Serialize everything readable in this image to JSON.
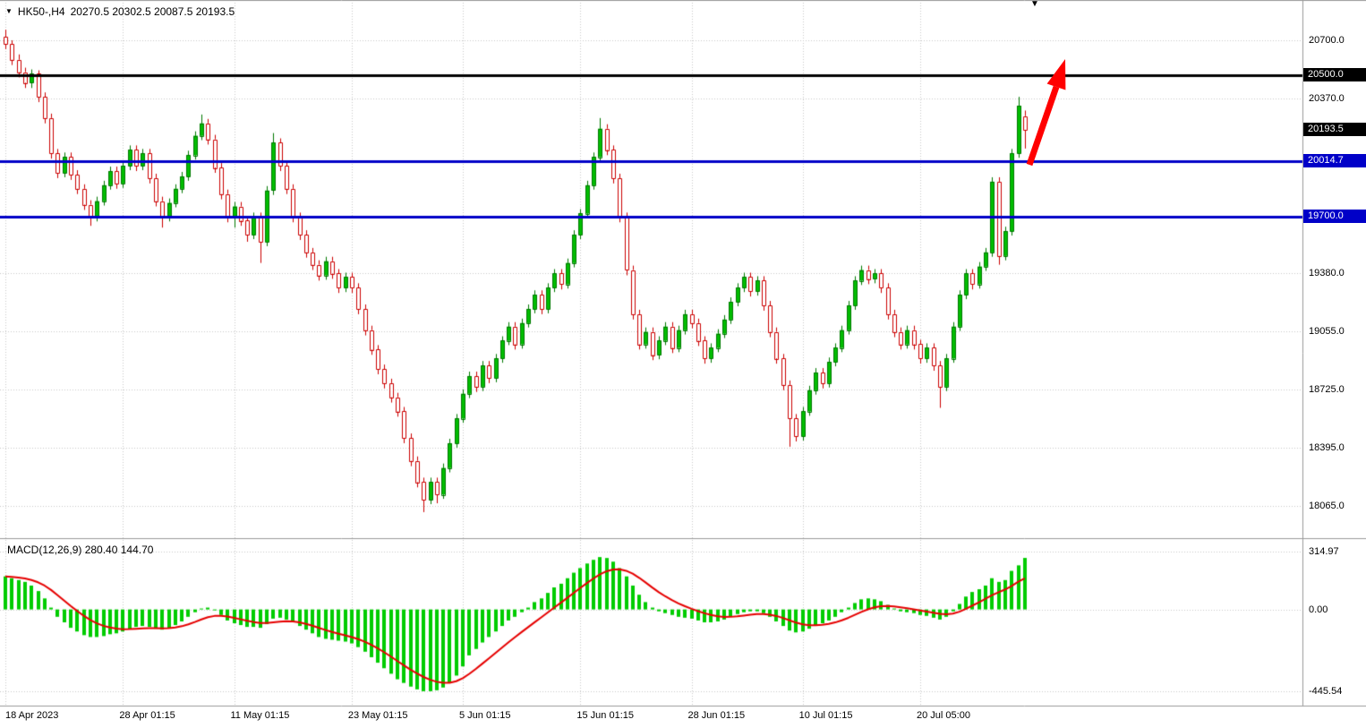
{
  "window": {
    "symbol_period": "HK50-,H4",
    "ohlc_line": "20270.5 20302.5 20087.5 20193.5"
  },
  "indicator_panel": {
    "label": "MACD(12,26,9) 280.40 144.70",
    "macd_value": "280.40",
    "signal_value": "144.70"
  },
  "decorations": {
    "dropdown_icon": "▼",
    "top_marker": "▼"
  },
  "price_axis": [
    {
      "text": "20700.0",
      "price": 20700.0,
      "style": "plain"
    },
    {
      "text": "20500.0",
      "price": 20500.0,
      "style": "black-badge"
    },
    {
      "text": "20370.0",
      "price": 20370.0,
      "style": "plain"
    },
    {
      "text": "20193.5",
      "price": 20193.5,
      "style": "black-badge"
    },
    {
      "text": "20014.7",
      "price": 20014.7,
      "style": "blue-badge"
    },
    {
      "text": "19700.0",
      "price": 19700.0,
      "style": "blue-badge"
    },
    {
      "text": "19380.0",
      "price": 19380.0,
      "style": "plain"
    },
    {
      "text": "19055.0",
      "price": 19055.0,
      "style": "plain"
    },
    {
      "text": "18725.0",
      "price": 18725.0,
      "style": "plain"
    },
    {
      "text": "18395.0",
      "price": 18395.0,
      "style": "plain"
    },
    {
      "text": "18065.0",
      "price": 18065.0,
      "style": "plain"
    }
  ],
  "macd_axis": [
    {
      "text": "314.97",
      "value": 314.97
    },
    {
      "text": "0.00",
      "value": 0
    },
    {
      "text": "-445.54",
      "value": -445.54
    }
  ],
  "time_axis": [
    {
      "text": "18 Apr 2023",
      "index": 0
    },
    {
      "text": "28 Apr 01:15",
      "index": 18
    },
    {
      "text": "11 May 01:15",
      "index": 35
    },
    {
      "text": "23 May 01:15",
      "index": 53
    },
    {
      "text": "5 Jun 01:15",
      "index": 70
    },
    {
      "text": "15 Jun 01:15",
      "index": 88
    },
    {
      "text": "28 Jun 01:15",
      "index": 105
    },
    {
      "text": "10 Jul 01:15",
      "index": 122
    },
    {
      "text": "20 Jul 05:00",
      "index": 140
    }
  ],
  "colors": {
    "background": "#FFFFFF",
    "grid": "#C9C9C9",
    "bull": "#00BE00",
    "bull_border": "#007800",
    "bear": "#CC0000",
    "level_black": "#000000",
    "level_blue": "#0000C8",
    "macd_histogram": "#00CC00",
    "macd_signal": "#E60000",
    "arrow": "#FF0000"
  },
  "chart_data": [
    {
      "type": "candlestick",
      "name": "HK50- H4 price",
      "ylim": [
        17930,
        20815
      ],
      "grid_prices": [
        20700,
        20370,
        19380,
        19055,
        18725,
        18395,
        18065
      ],
      "levels": [
        {
          "price": 20500.0,
          "color": "#000000"
        },
        {
          "price": 20014.7,
          "color": "#0000C8"
        },
        {
          "price": 19700.0,
          "color": "#0000C8"
        }
      ],
      "current_price": 20193.5,
      "last_ohlc": {
        "open": 20270.5,
        "high": 20302.5,
        "low": 20087.5,
        "close": 20193.5
      },
      "candles": [
        [
          20720,
          20760,
          20650,
          20680
        ],
        [
          20680,
          20700,
          20560,
          20590
        ],
        [
          20590,
          20620,
          20490,
          20520
        ],
        [
          20520,
          20545,
          20430,
          20460
        ],
        [
          20460,
          20535,
          20430,
          20510
        ],
        [
          20510,
          20530,
          20350,
          20380
        ],
        [
          20380,
          20405,
          20230,
          20260
        ],
        [
          20260,
          20285,
          20030,
          20060
        ],
        [
          20060,
          20085,
          19920,
          19950
        ],
        [
          19950,
          20065,
          19925,
          20040
        ],
        [
          20040,
          20065,
          19910,
          19940
        ],
        [
          19940,
          19965,
          19830,
          19860
        ],
        [
          19860,
          19885,
          19740,
          19770
        ],
        [
          19770,
          19795,
          19650,
          19700
        ],
        [
          19700,
          19815,
          19675,
          19790
        ],
        [
          19790,
          19905,
          19765,
          19880
        ],
        [
          19880,
          19985,
          19855,
          19960
        ],
        [
          19960,
          19985,
          19860,
          19890
        ],
        [
          19890,
          20015,
          19865,
          19990
        ],
        [
          19990,
          20105,
          19965,
          20080
        ],
        [
          20080,
          20105,
          19960,
          19990
        ],
        [
          19990,
          20085,
          19965,
          20060
        ],
        [
          20060,
          20085,
          19890,
          19920
        ],
        [
          19920,
          19945,
          19760,
          19790
        ],
        [
          19790,
          19815,
          19640,
          19700
        ],
        [
          19700,
          19805,
          19675,
          19780
        ],
        [
          19780,
          19885,
          19755,
          19860
        ],
        [
          19860,
          19955,
          19835,
          19930
        ],
        [
          19930,
          20075,
          19905,
          20050
        ],
        [
          20050,
          20185,
          20025,
          20160
        ],
        [
          20160,
          20280,
          20135,
          20230
        ],
        [
          20230,
          20255,
          20110,
          20140
        ],
        [
          20140,
          20165,
          19950,
          19980
        ],
        [
          19980,
          20005,
          19800,
          19830
        ],
        [
          19830,
          19855,
          19670,
          19700
        ],
        [
          19700,
          19785,
          19640,
          19760
        ],
        [
          19760,
          19785,
          19650,
          19680
        ],
        [
          19680,
          19705,
          19560,
          19600
        ],
        [
          19600,
          19725,
          19575,
          19700
        ],
        [
          19700,
          19725,
          19440,
          19560
        ],
        [
          19560,
          19875,
          19535,
          19850
        ],
        [
          19850,
          20175,
          19825,
          20120
        ],
        [
          20120,
          20145,
          19960,
          19990
        ],
        [
          19990,
          20015,
          19830,
          19860
        ],
        [
          19860,
          19885,
          19670,
          19700
        ],
        [
          19700,
          19725,
          19570,
          19600
        ],
        [
          19600,
          19625,
          19470,
          19500
        ],
        [
          19500,
          19525,
          19400,
          19430
        ],
        [
          19430,
          19455,
          19340,
          19370
        ],
        [
          19370,
          19475,
          19345,
          19450
        ],
        [
          19450,
          19475,
          19350,
          19380
        ],
        [
          19380,
          19405,
          19270,
          19300
        ],
        [
          19300,
          19385,
          19275,
          19360
        ],
        [
          19360,
          19385,
          19270,
          19300
        ],
        [
          19300,
          19325,
          19150,
          19180
        ],
        [
          19180,
          19205,
          19030,
          19060
        ],
        [
          19060,
          19085,
          18920,
          18950
        ],
        [
          18950,
          18975,
          18810,
          18840
        ],
        [
          18840,
          18865,
          18730,
          18760
        ],
        [
          18760,
          18785,
          18650,
          18680
        ],
        [
          18680,
          18705,
          18570,
          18600
        ],
        [
          18600,
          18625,
          18420,
          18450
        ],
        [
          18450,
          18475,
          18290,
          18320
        ],
        [
          18320,
          18345,
          18170,
          18200
        ],
        [
          18200,
          18225,
          18030,
          18100
        ],
        [
          18100,
          18225,
          18075,
          18200
        ],
        [
          18200,
          18225,
          18080,
          18130
        ],
        [
          18130,
          18305,
          18105,
          18280
        ],
        [
          18280,
          18445,
          18255,
          18420
        ],
        [
          18420,
          18585,
          18395,
          18560
        ],
        [
          18560,
          18725,
          18535,
          18700
        ],
        [
          18700,
          18825,
          18675,
          18800
        ],
        [
          18800,
          18825,
          18710,
          18740
        ],
        [
          18740,
          18885,
          18715,
          18860
        ],
        [
          18860,
          18885,
          18760,
          18790
        ],
        [
          18790,
          18925,
          18765,
          18900
        ],
        [
          18900,
          19025,
          18875,
          19000
        ],
        [
          19000,
          19105,
          18975,
          19080
        ],
        [
          19080,
          19105,
          18950,
          18980
        ],
        [
          18980,
          19125,
          18955,
          19100
        ],
        [
          19100,
          19205,
          19075,
          19180
        ],
        [
          19180,
          19285,
          19155,
          19260
        ],
        [
          19260,
          19285,
          19150,
          19180
        ],
        [
          19180,
          19325,
          19155,
          19300
        ],
        [
          19300,
          19405,
          19275,
          19380
        ],
        [
          19380,
          19405,
          19290,
          19320
        ],
        [
          19320,
          19465,
          19295,
          19440
        ],
        [
          19440,
          19625,
          19415,
          19600
        ],
        [
          19600,
          19745,
          19575,
          19720
        ],
        [
          19720,
          19905,
          19695,
          19880
        ],
        [
          19880,
          20065,
          19855,
          20040
        ],
        [
          20040,
          20260,
          20015,
          20200
        ],
        [
          20200,
          20225,
          20050,
          20080
        ],
        [
          20080,
          20105,
          19890,
          19920
        ],
        [
          19920,
          19945,
          19670,
          19700
        ],
        [
          19700,
          19725,
          19370,
          19400
        ],
        [
          19400,
          19425,
          19120,
          19150
        ],
        [
          19150,
          19175,
          18950,
          18980
        ],
        [
          18980,
          19075,
          18955,
          19050
        ],
        [
          19050,
          19075,
          18890,
          18920
        ],
        [
          18920,
          19025,
          18895,
          19000
        ],
        [
          19000,
          19105,
          18975,
          19080
        ],
        [
          19080,
          19105,
          18930,
          18960
        ],
        [
          18960,
          19085,
          18935,
          19060
        ],
        [
          19060,
          19175,
          19035,
          19150
        ],
        [
          19150,
          19175,
          19070,
          19100
        ],
        [
          19100,
          19125,
          18970,
          19000
        ],
        [
          19000,
          19025,
          18870,
          18900
        ],
        [
          18900,
          18985,
          18875,
          18960
        ],
        [
          18960,
          19065,
          18935,
          19040
        ],
        [
          19040,
          19145,
          19015,
          19120
        ],
        [
          19120,
          19245,
          19095,
          19220
        ],
        [
          19220,
          19325,
          19195,
          19300
        ],
        [
          19300,
          19385,
          19275,
          19360
        ],
        [
          19360,
          19385,
          19250,
          19280
        ],
        [
          19280,
          19365,
          19255,
          19340
        ],
        [
          19340,
          19365,
          19170,
          19200
        ],
        [
          19200,
          19225,
          19020,
          19050
        ],
        [
          19050,
          19075,
          18870,
          18900
        ],
        [
          18900,
          18925,
          18720,
          18750
        ],
        [
          18750,
          18775,
          18400,
          18560
        ],
        [
          18560,
          18585,
          18430,
          18460
        ],
        [
          18460,
          18625,
          18435,
          18600
        ],
        [
          18600,
          18745,
          18575,
          18720
        ],
        [
          18720,
          18845,
          18695,
          18820
        ],
        [
          18820,
          18845,
          18730,
          18760
        ],
        [
          18760,
          18905,
          18735,
          18880
        ],
        [
          18880,
          18985,
          18855,
          18960
        ],
        [
          18960,
          19085,
          18935,
          19060
        ],
        [
          19060,
          19225,
          19035,
          19200
        ],
        [
          19200,
          19365,
          19175,
          19340
        ],
        [
          19340,
          19425,
          19315,
          19400
        ],
        [
          19400,
          19425,
          19320,
          19350
        ],
        [
          19350,
          19405,
          19325,
          19380
        ],
        [
          19380,
          19405,
          19270,
          19300
        ],
        [
          19300,
          19325,
          19120,
          19150
        ],
        [
          19150,
          19175,
          19020,
          19050
        ],
        [
          19050,
          19075,
          18950,
          18980
        ],
        [
          18980,
          19085,
          18955,
          19060
        ],
        [
          19060,
          19085,
          18950,
          18980
        ],
        [
          18980,
          19005,
          18870,
          18900
        ],
        [
          18900,
          18985,
          18875,
          18960
        ],
        [
          18960,
          18985,
          18830,
          18860
        ],
        [
          18860,
          18885,
          18620,
          18740
        ],
        [
          18740,
          18925,
          18715,
          18900
        ],
        [
          18900,
          19105,
          18875,
          19080
        ],
        [
          19080,
          19285,
          19055,
          19260
        ],
        [
          19260,
          19405,
          19235,
          19380
        ],
        [
          19380,
          19405,
          19290,
          19320
        ],
        [
          19320,
          19445,
          19295,
          19420
        ],
        [
          19420,
          19525,
          19395,
          19500
        ],
        [
          19500,
          19925,
          19475,
          19900
        ],
        [
          19900,
          19925,
          19430,
          19480
        ],
        [
          19480,
          19645,
          19455,
          19620
        ],
        [
          19620,
          20085,
          19595,
          20060
        ],
        [
          20060,
          20380,
          20035,
          20330
        ],
        [
          20270.5,
          20302.5,
          20087.5,
          20193.5
        ]
      ]
    },
    {
      "type": "bar",
      "name": "MACD(12,26,9)",
      "main_last": 280.4,
      "signal_last": 144.7,
      "signal_rule": "EMA(9) of values",
      "ylim": [
        -445.54,
        314.97
      ],
      "values": [
        180,
        170,
        160,
        150,
        130,
        100,
        60,
        10,
        -40,
        -70,
        -100,
        -120,
        -140,
        -150,
        -150,
        -145,
        -135,
        -130,
        -120,
        -105,
        -95,
        -90,
        -95,
        -105,
        -110,
        -100,
        -85,
        -65,
        -40,
        -15,
        5,
        10,
        -5,
        -30,
        -60,
        -75,
        -85,
        -95,
        -95,
        -100,
        -80,
        -50,
        -45,
        -55,
        -70,
        -90,
        -110,
        -130,
        -150,
        -160,
        -165,
        -170,
        -175,
        -185,
        -205,
        -230,
        -260,
        -290,
        -320,
        -350,
        -380,
        -400,
        -420,
        -435,
        -445,
        -445,
        -440,
        -425,
        -400,
        -360,
        -310,
        -250,
        -215,
        -180,
        -150,
        -120,
        -90,
        -60,
        -40,
        -15,
        10,
        40,
        60,
        90,
        120,
        140,
        170,
        200,
        225,
        250,
        270,
        285,
        280,
        260,
        225,
        180,
        130,
        80,
        40,
        10,
        -10,
        -20,
        -30,
        -40,
        -45,
        -50,
        -60,
        -70,
        -70,
        -65,
        -55,
        -40,
        -25,
        -15,
        -10,
        -10,
        -20,
        -40,
        -65,
        -90,
        -115,
        -125,
        -120,
        -105,
        -85,
        -75,
        -60,
        -40,
        -15,
        10,
        35,
        55,
        60,
        55,
        45,
        25,
        5,
        -10,
        -15,
        -20,
        -30,
        -35,
        -45,
        -55,
        -40,
        -10,
        30,
        70,
        95,
        110,
        130,
        170,
        150,
        160,
        210,
        240,
        280.4
      ]
    }
  ]
}
